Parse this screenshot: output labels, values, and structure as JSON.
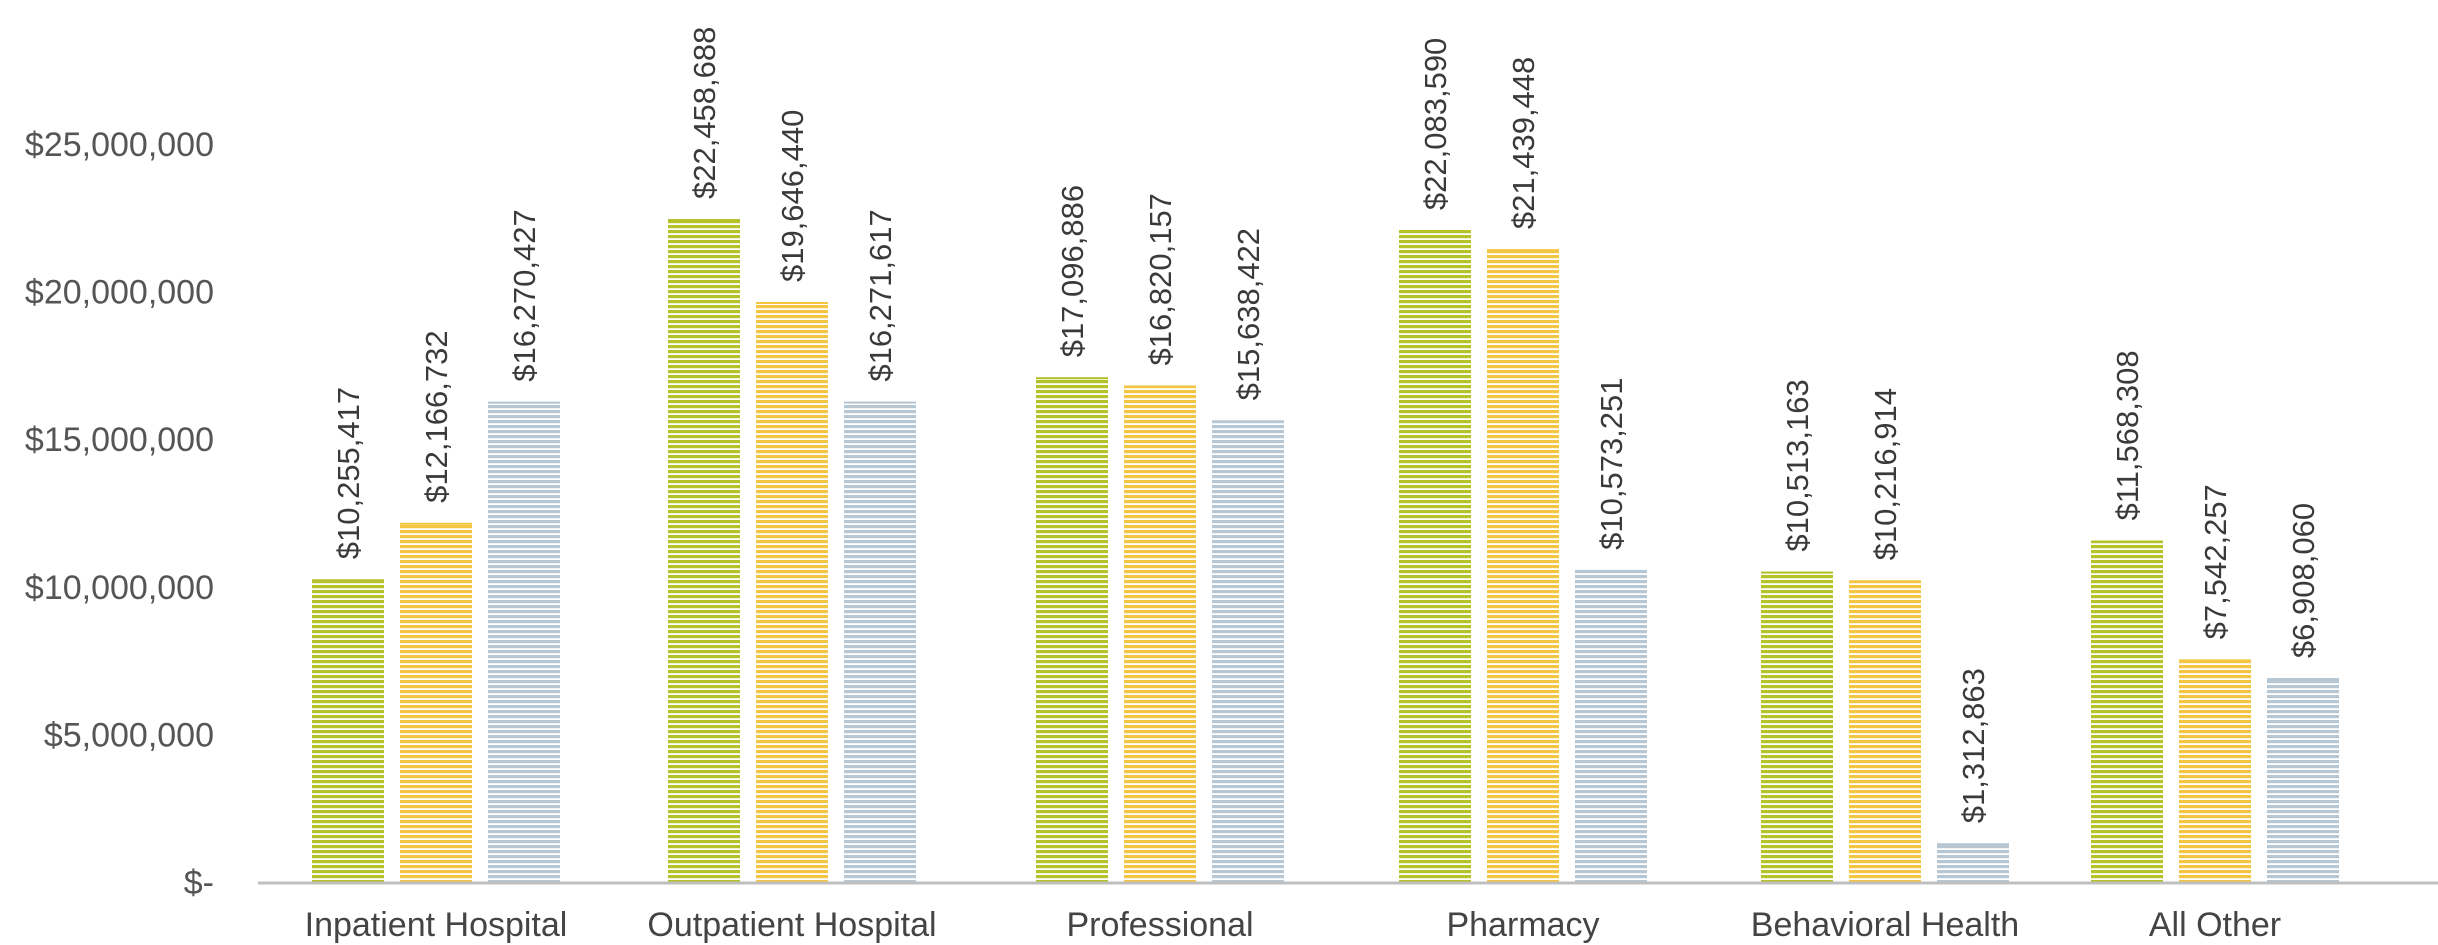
{
  "colors": {
    "series_1": "#b5c22a",
    "series_2": "#f4c542",
    "series_3": "#b6c6d2",
    "axis": "#bfbfbf",
    "text": "#555555"
  },
  "chart_data": {
    "type": "bar",
    "categories": [
      "Inpatient Hospital",
      "Outpatient Hospital",
      "Professional",
      "Pharmacy",
      "Behavioral Health",
      "All Other"
    ],
    "series": [
      {
        "color": "#b5c22a",
        "values": [
          10255417,
          22458688,
          17096886,
          22083590,
          10513163,
          11568308
        ],
        "labels": [
          "$10,255,417",
          "$22,458,688",
          "$17,096,886",
          "$22,083,590",
          "$10,513,163",
          "$11,568,308"
        ]
      },
      {
        "color": "#f4c542",
        "values": [
          12166732,
          19646440,
          16820157,
          21439448,
          10216914,
          7542257
        ],
        "labels": [
          "$12,166,732",
          "$19,646,440",
          "$16,820,157",
          "$21,439,448",
          "$10,216,914",
          "$7,542,257"
        ]
      },
      {
        "color": "#b6c6d2",
        "values": [
          16270427,
          16271617,
          15638422,
          10573251,
          1312863,
          6908060
        ],
        "labels": [
          "$16,270,427",
          "$16,271,617",
          "$15,638,422",
          "$10,573,251",
          "$1,312,863",
          "$6,908,060"
        ]
      }
    ],
    "y_ticks": [
      0,
      5000000,
      10000000,
      15000000,
      20000000,
      25000000
    ],
    "y_tick_labels": [
      "$-",
      "$5,000,000",
      "$10,000,000",
      "$15,000,000",
      "$20,000,000",
      "$25,000,000"
    ],
    "ylim": [
      0,
      25000000
    ],
    "grid": false,
    "legend": "none",
    "bar_pattern": "horizontal stripes",
    "data_labels": "rotated vertical above bars"
  }
}
